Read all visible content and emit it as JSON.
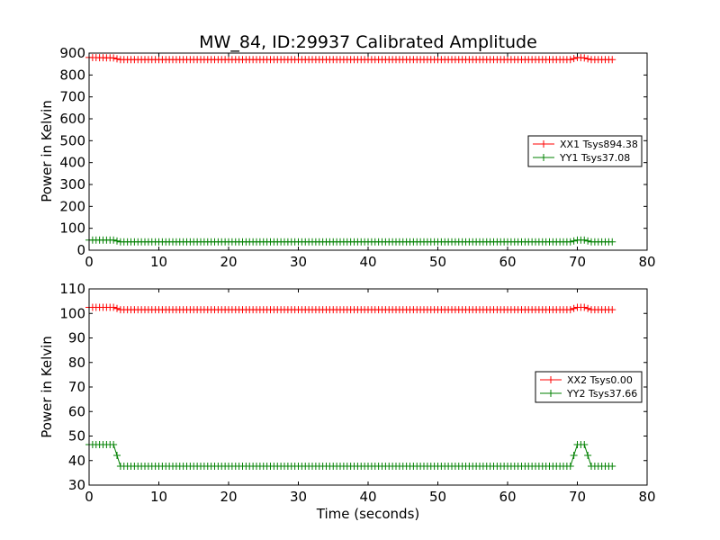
{
  "chart_data": [
    {
      "type": "line",
      "title": "MW_84, ID:29937 Calibrated Amplitude",
      "xlabel": "",
      "ylabel": "Power in Kelvin",
      "xlim": [
        0,
        80
      ],
      "ylim": [
        0,
        900
      ],
      "xticks": [
        0,
        10,
        20,
        30,
        40,
        50,
        60,
        70,
        80
      ],
      "yticks": [
        0,
        100,
        200,
        300,
        400,
        500,
        600,
        700,
        800,
        900
      ],
      "legend_position": "center-right",
      "grid": false,
      "x": [
        0,
        3.5,
        4.5,
        69,
        70,
        71,
        72,
        75
      ],
      "series": [
        {
          "name": "XX1 Tsys894.38",
          "color": "#ff0000",
          "marker": "+",
          "values": [
            880,
            878,
            870,
            870,
            880,
            878,
            870,
            870
          ]
        },
        {
          "name": "YY1 Tsys37.08",
          "color": "#008000",
          "marker": "+",
          "values": [
            46,
            46,
            38,
            38,
            46,
            46,
            38,
            38
          ]
        }
      ]
    },
    {
      "type": "line",
      "title": "",
      "xlabel": "Time (seconds)",
      "ylabel": "Power in Kelvin",
      "xlim": [
        0,
        80
      ],
      "ylim": [
        30,
        110
      ],
      "xticks": [
        0,
        10,
        20,
        30,
        40,
        50,
        60,
        70,
        80
      ],
      "yticks": [
        30,
        40,
        50,
        60,
        70,
        80,
        90,
        100,
        110
      ],
      "legend_position": "center-right",
      "grid": false,
      "x": [
        0,
        3.5,
        4.5,
        69,
        70,
        71,
        72,
        75
      ],
      "series": [
        {
          "name": "XX2 Tsys0.00",
          "color": "#ff0000",
          "marker": "+",
          "values": [
            102.5,
            102.5,
            101.5,
            101.5,
            102.5,
            102.5,
            101.5,
            101.5
          ]
        },
        {
          "name": "YY2 Tsys37.66",
          "color": "#008000",
          "marker": "+",
          "values": [
            46.5,
            46.5,
            37.7,
            37.7,
            46.5,
            46.5,
            37.7,
            37.7
          ]
        }
      ]
    }
  ]
}
